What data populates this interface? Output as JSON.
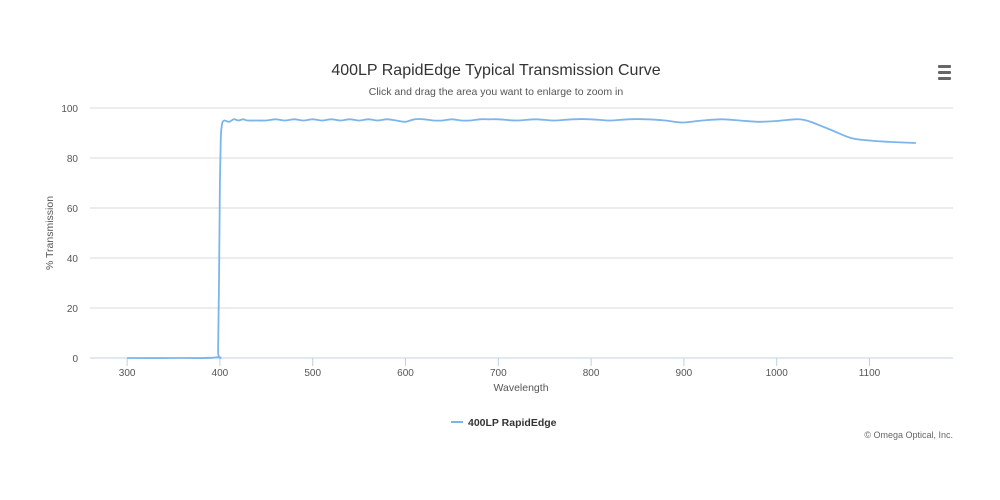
{
  "chart_data": {
    "type": "line",
    "title": "400LP RapidEdge Typical Transmission Curve",
    "subtitle": "Click and drag the area you want to enlarge to zoom in",
    "xlabel": "Wavelength",
    "ylabel": "% Transmission",
    "xlim": [
      260,
      1190
    ],
    "ylim": [
      0,
      100
    ],
    "x_ticks": [
      300,
      400,
      500,
      600,
      700,
      800,
      900,
      1000,
      1100
    ],
    "y_ticks": [
      0,
      20,
      40,
      60,
      80,
      100
    ],
    "grid": true,
    "legend": "bottom-center",
    "credits": "© Omega Optical, Inc.",
    "series": [
      {
        "name": "400LP RapidEdge",
        "color": "#7cb5ec",
        "x": [
          300,
          350,
          397,
          398,
          399,
          400,
          401,
          402,
          403,
          405,
          410,
          415,
          420,
          425,
          430,
          440,
          450,
          460,
          470,
          480,
          490,
          500,
          510,
          520,
          530,
          540,
          550,
          560,
          570,
          580,
          590,
          600,
          610,
          620,
          630,
          640,
          650,
          660,
          670,
          680,
          690,
          700,
          720,
          740,
          760,
          780,
          800,
          820,
          840,
          860,
          880,
          890,
          900,
          920,
          940,
          960,
          980,
          1000,
          1020,
          1030,
          1040,
          1060,
          1080,
          1100,
          1120,
          1150
        ],
        "y": [
          0,
          0,
          0.3,
          3,
          30,
          70,
          88,
          93,
          94.5,
          95,
          94.5,
          95.5,
          95,
          95.5,
          95,
          95,
          95,
          95.5,
          95,
          95.5,
          95,
          95.5,
          95,
          95.5,
          95,
          95.5,
          95,
          95.5,
          95,
          95.5,
          95,
          94.5,
          95.5,
          95.5,
          95,
          95,
          95.5,
          95,
          95,
          95.5,
          95.5,
          95.5,
          95,
          95.5,
          95,
          95.5,
          95.5,
          95,
          95.5,
          95.5,
          95,
          94.5,
          94.2,
          95,
          95.5,
          95,
          94.5,
          94.8,
          95.5,
          95.2,
          94,
          91,
          88,
          87,
          86.5,
          86
        ]
      }
    ]
  }
}
